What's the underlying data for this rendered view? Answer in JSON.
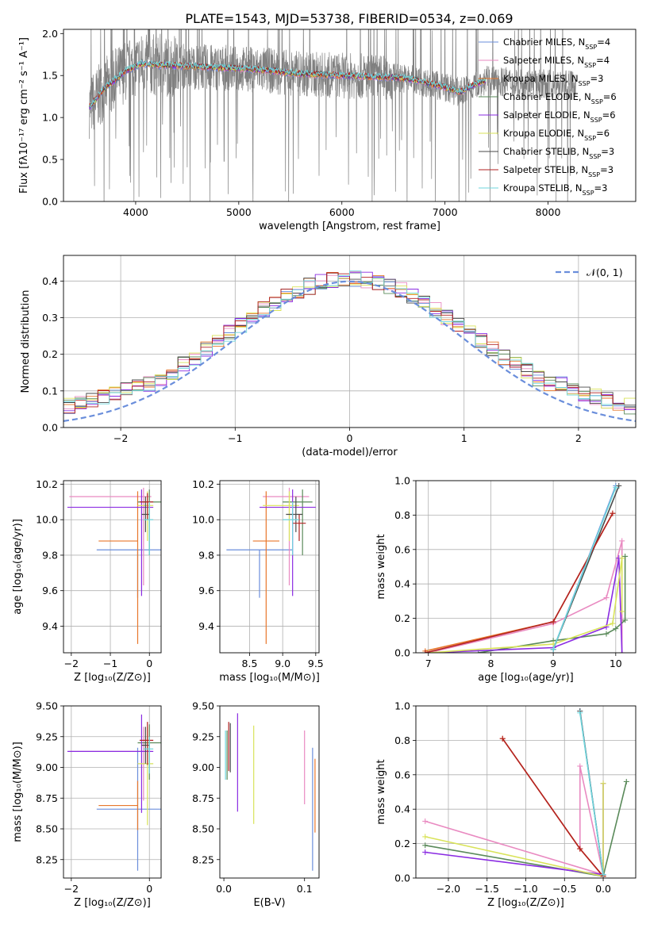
{
  "title": "PLATE=1543, MJD=53738, FIBERID=0534, z=0.069",
  "series_legend": [
    {
      "label": "Chabrier MILES, N",
      "sub": "SSP",
      "eq": "=4",
      "color": "#6a8edb"
    },
    {
      "label": "Salpeter MILES, N",
      "sub": "SSP",
      "eq": "=4",
      "color": "#e98ac1"
    },
    {
      "label": "Kroupa MILES, N",
      "sub": "SSP",
      "eq": "=3",
      "color": "#e8772b"
    },
    {
      "label": "Chabrier ELODIE, N",
      "sub": "SSP",
      "eq": "=6",
      "color": "#5a8a5a"
    },
    {
      "label": "Salpeter ELODIE, N",
      "sub": "SSP",
      "eq": "=6",
      "color": "#8a2be2"
    },
    {
      "label": "Kroupa ELODIE, N",
      "sub": "SSP",
      "eq": "=6",
      "color": "#d9e35a"
    },
    {
      "label": "Chabrier STELIB, N",
      "sub": "SSP",
      "eq": "=3",
      "color": "#4a4a4a"
    },
    {
      "label": "Salpeter STELIB, N",
      "sub": "SSP",
      "eq": "=3",
      "color": "#b22222"
    },
    {
      "label": "Kroupa STELIB, N",
      "sub": "SSP",
      "eq": "=3",
      "color": "#6fd6dc"
    }
  ],
  "chart_data": [
    {
      "id": "spectrum",
      "type": "line",
      "xlabel": "wavelength [Angstrom, rest frame]",
      "ylabel": "Flux [fλ10⁻¹⁷ erg cm⁻² s⁻¹ A⁻¹]",
      "xlim": [
        3300,
        8850
      ],
      "ylim": [
        0,
        2.05
      ],
      "xticks": [
        4000,
        5000,
        6000,
        7000,
        8000
      ],
      "yticks": [
        0,
        0.5,
        1.0,
        1.5,
        2.0
      ],
      "yticklabels": [
        "0.0",
        "0.5",
        "1.0",
        "1.5",
        "2.0"
      ],
      "data_range": [
        3550,
        8270
      ],
      "model_range": [
        3550,
        7400
      ],
      "continuum": [
        [
          3550,
          1.12
        ],
        [
          3700,
          1.35
        ],
        [
          3900,
          1.55
        ],
        [
          4050,
          1.64
        ],
        [
          4300,
          1.62
        ],
        [
          4700,
          1.6
        ],
        [
          5200,
          1.57
        ],
        [
          5600,
          1.52
        ],
        [
          6000,
          1.5
        ],
        [
          6400,
          1.48
        ],
        [
          6600,
          1.47
        ],
        [
          6800,
          1.42
        ],
        [
          7000,
          1.36
        ],
        [
          7150,
          1.3
        ],
        [
          7300,
          1.4
        ],
        [
          7400,
          1.44
        ],
        [
          7700,
          1.42
        ],
        [
          8000,
          1.4
        ],
        [
          8270,
          1.38
        ]
      ]
    },
    {
      "id": "residuals",
      "type": "step",
      "xlabel": "(data-model)/error",
      "ylabel": "Normed distribution",
      "xlim": [
        -2.5,
        2.5
      ],
      "ylim": [
        0,
        0.47
      ],
      "xticks": [
        -2,
        -1,
        0,
        1,
        2
      ],
      "yticks": [
        0,
        0.1,
        0.2,
        0.3,
        0.4
      ],
      "xticklabels": [
        "−2",
        "−1",
        "0",
        "1",
        "2"
      ],
      "yticklabels": [
        "0.0",
        "0.1",
        "0.2",
        "0.3",
        "0.4"
      ],
      "bin_width": 0.1,
      "bin_start": -2.5,
      "reference": {
        "name": "𝒩(0, 1)",
        "color": "#6a8edb"
      }
    },
    {
      "id": "age_vs_Z",
      "type": "errorbar",
      "xlabel": "Z [log₁₀(Z/Z⊙)]",
      "ylabel": "age  [log₁₀(age/yr)]",
      "xlim": [
        -2.2,
        0.3
      ],
      "ylim": [
        9.25,
        10.22
      ],
      "xticks": [
        -2,
        -1,
        0
      ],
      "xticklabels": [
        "−2",
        "−1",
        "0"
      ],
      "yticks": [
        9.4,
        9.6,
        9.8,
        10.0,
        10.2
      ],
      "yticklabels": [
        "9.4",
        "9.6",
        "9.8",
        "10.0",
        "10.2"
      ],
      "points": [
        {
          "x": -0.3,
          "y": 9.83,
          "xerr": [
            1.05,
            1.0
          ],
          "yerr": [
            0.27,
            0.0
          ],
          "s": 0
        },
        {
          "x": -0.15,
          "y": 10.13,
          "xerr": [
            1.9,
            0.2
          ],
          "yerr": [
            0.5,
            0.05
          ],
          "s": 1
        },
        {
          "x": -0.3,
          "y": 9.88,
          "xerr": [
            1.0,
            0.0
          ],
          "yerr": [
            0.58,
            0.28
          ],
          "s": 2
        },
        {
          "x": 0.0,
          "y": 10.1,
          "xerr": [
            0.3,
            0.3
          ],
          "yerr": [
            0.3,
            0.07
          ],
          "s": 3
        },
        {
          "x": -0.2,
          "y": 10.07,
          "xerr": [
            1.9,
            0.3
          ],
          "yerr": [
            0.5,
            0.1
          ],
          "s": 4
        },
        {
          "x": -0.05,
          "y": 10.08,
          "xerr": [
            0.25,
            0.15
          ],
          "yerr": [
            0.2,
            0.08
          ],
          "s": 5
        },
        {
          "x": -0.1,
          "y": 10.03,
          "xerr": [
            0.1,
            0.1
          ],
          "yerr": [
            0.1,
            0.1
          ],
          "s": 6
        },
        {
          "x": -0.05,
          "y": 10.1,
          "xerr": [
            0.2,
            0.15
          ],
          "yerr": [
            0.1,
            0.05
          ],
          "s": 7
        },
        {
          "x": 0.0,
          "y": 10.0,
          "xerr": [
            0.15,
            0.1
          ],
          "yerr": [
            0.2,
            0.1
          ],
          "s": 8
        }
      ]
    },
    {
      "id": "age_vs_mass",
      "type": "errorbar",
      "xlabel": "mass [log₁₀(M/M⊙)]",
      "ylabel": "",
      "xlim": [
        8.05,
        9.55
      ],
      "ylim": [
        9.25,
        10.22
      ],
      "xticks": [
        8.5,
        9.0,
        9.5
      ],
      "xticklabels": [
        "8.5",
        "9.0",
        "9.5"
      ],
      "yticks": [
        9.4,
        9.6,
        9.8,
        10.0,
        10.2
      ],
      "yticklabels": [
        "9.4",
        "9.6",
        "9.8",
        "10.0",
        "10.2"
      ],
      "points": [
        {
          "x": 8.65,
          "y": 9.83,
          "xerr": [
            0.5,
            0.5
          ],
          "yerr": [
            0.27,
            0.0
          ],
          "s": 0
        },
        {
          "x": 9.1,
          "y": 10.13,
          "xerr": [
            0.4,
            0.3
          ],
          "yerr": [
            0.5,
            0.05
          ],
          "s": 1
        },
        {
          "x": 8.75,
          "y": 9.88,
          "xerr": [
            0.2,
            0.2
          ],
          "yerr": [
            0.58,
            0.28
          ],
          "s": 2
        },
        {
          "x": 9.3,
          "y": 10.1,
          "xerr": [
            0.3,
            0.15
          ],
          "yerr": [
            0.3,
            0.07
          ],
          "s": 3
        },
        {
          "x": 9.15,
          "y": 10.07,
          "xerr": [
            0.5,
            0.35
          ],
          "yerr": [
            0.5,
            0.1
          ],
          "s": 4
        },
        {
          "x": 9.1,
          "y": 10.08,
          "xerr": [
            0.4,
            0.15
          ],
          "yerr": [
            0.2,
            0.08
          ],
          "s": 5
        },
        {
          "x": 9.2,
          "y": 10.03,
          "xerr": [
            0.15,
            0.1
          ],
          "yerr": [
            0.1,
            0.1
          ],
          "s": 6
        },
        {
          "x": 9.25,
          "y": 9.98,
          "xerr": [
            0.1,
            0.1
          ],
          "yerr": [
            0.1,
            0.05
          ],
          "s": 7
        },
        {
          "x": 9.15,
          "y": 10.0,
          "xerr": [
            0.15,
            0.1
          ],
          "yerr": [
            0.2,
            0.1
          ],
          "s": 8
        }
      ]
    },
    {
      "id": "mass_vs_Z",
      "type": "errorbar",
      "xlabel": "Z [log₁₀(Z/Z⊙)]",
      "ylabel": "mass [log₁₀(M/M⊙)]",
      "xlim": [
        -2.2,
        0.3
      ],
      "ylim": [
        8.1,
        9.5
      ],
      "xticks": [
        -2,
        0
      ],
      "xticklabels": [
        "−2",
        "0"
      ],
      "yticks": [
        8.25,
        8.5,
        8.75,
        9.0,
        9.25,
        9.5
      ],
      "yticklabels": [
        "8.25",
        "8.50",
        "8.75",
        "9.00",
        "9.25",
        "9.50"
      ],
      "points": [
        {
          "x": -0.3,
          "y": 8.66,
          "xerr": [
            1.05,
            1.0
          ],
          "yerr": [
            0.5,
            0.5
          ],
          "s": 0
        },
        {
          "x": -0.15,
          "y": 9.13,
          "xerr": [
            1.9,
            0.2
          ],
          "yerr": [
            0.4,
            0.2
          ],
          "s": 1
        },
        {
          "x": -0.3,
          "y": 8.69,
          "xerr": [
            1.0,
            0.0
          ],
          "yerr": [
            0.2,
            0.2
          ],
          "s": 2
        },
        {
          "x": 0.0,
          "y": 9.2,
          "xerr": [
            0.3,
            0.3
          ],
          "yerr": [
            0.3,
            0.15
          ],
          "s": 3
        },
        {
          "x": -0.2,
          "y": 9.13,
          "xerr": [
            1.9,
            0.3
          ],
          "yerr": [
            0.5,
            0.3
          ],
          "s": 4
        },
        {
          "x": -0.05,
          "y": 9.03,
          "xerr": [
            0.25,
            0.15
          ],
          "yerr": [
            0.5,
            0.3
          ],
          "s": 5
        },
        {
          "x": -0.1,
          "y": 9.18,
          "xerr": [
            0.1,
            0.1
          ],
          "yerr": [
            0.15,
            0.15
          ],
          "s": 6
        },
        {
          "x": -0.05,
          "y": 9.22,
          "xerr": [
            0.2,
            0.15
          ],
          "yerr": [
            0.2,
            0.15
          ],
          "s": 7
        },
        {
          "x": 0.0,
          "y": 9.15,
          "xerr": [
            0.15,
            0.1
          ],
          "yerr": [
            0.2,
            0.1
          ],
          "s": 8
        }
      ]
    },
    {
      "id": "mass_vs_ebv",
      "type": "errorbar",
      "xlabel": "E(B-V)",
      "ylabel": "",
      "xlim": [
        -0.005,
        0.118
      ],
      "ylim": [
        8.1,
        9.5
      ],
      "xticks": [
        0.0,
        0.1
      ],
      "xticklabels": [
        "0.0",
        "0.1"
      ],
      "yticks": [
        8.25,
        8.5,
        8.75,
        9.0,
        9.25,
        9.5
      ],
      "yticklabels": [
        "8.25",
        "8.50",
        "8.75",
        "9.00",
        "9.25",
        "9.50"
      ],
      "points": [
        {
          "x": 0.11,
          "y": 8.66,
          "xerr": [
            0,
            0
          ],
          "yerr": [
            0.5,
            0.5
          ],
          "s": 0
        },
        {
          "x": 0.1,
          "y": 9.0,
          "xerr": [
            0,
            0
          ],
          "yerr": [
            0.3,
            0.3
          ],
          "s": 1
        },
        {
          "x": 0.113,
          "y": 8.77,
          "xerr": [
            0,
            0
          ],
          "yerr": [
            0.3,
            0.3
          ],
          "s": 2
        },
        {
          "x": 0.004,
          "y": 9.1,
          "xerr": [
            0,
            0
          ],
          "yerr": [
            0.2,
            0.2
          ],
          "s": 3
        },
        {
          "x": 0.017,
          "y": 9.04,
          "xerr": [
            0,
            0
          ],
          "yerr": [
            0.4,
            0.4
          ],
          "s": 4
        },
        {
          "x": 0.037,
          "y": 8.94,
          "xerr": [
            0,
            0
          ],
          "yerr": [
            0.4,
            0.4
          ],
          "s": 5
        },
        {
          "x": 0.008,
          "y": 9.16,
          "xerr": [
            0,
            0
          ],
          "yerr": [
            0.2,
            0.2
          ],
          "s": 6
        },
        {
          "x": 0.006,
          "y": 9.17,
          "xerr": [
            0,
            0
          ],
          "yerr": [
            0.2,
            0.2
          ],
          "s": 7
        },
        {
          "x": 0.002,
          "y": 9.1,
          "xerr": [
            0,
            0
          ],
          "yerr": [
            0.2,
            0.2
          ],
          "s": 8
        }
      ]
    },
    {
      "id": "weight_vs_age",
      "type": "line",
      "xlabel": "age  [log₁₀(age/yr)]",
      "ylabel": "mass weight",
      "xlim": [
        6.8,
        10.32
      ],
      "ylim": [
        0,
        1.0
      ],
      "xticks": [
        7,
        8,
        9,
        10
      ],
      "xticklabels": [
        "7",
        "8",
        "9",
        "10"
      ],
      "yticks": [
        0,
        0.2,
        0.4,
        0.6,
        0.8,
        1.0
      ],
      "yticklabels": [
        "0.0",
        "0.2",
        "0.4",
        "0.6",
        "0.8",
        "1.0"
      ],
      "series": [
        {
          "s": 0,
          "x": [
            9.0,
            10.0
          ],
          "y": [
            0.02,
            0.97
          ]
        },
        {
          "s": 1,
          "x": [
            7.0,
            9.0,
            9.85,
            10.1,
            10.1
          ],
          "y": [
            0.0,
            0.17,
            0.32,
            0.65,
            0.0
          ]
        },
        {
          "s": 2,
          "x": [
            6.95,
            9.0,
            9.95
          ],
          "y": [
            0.01,
            0.18,
            0.81
          ]
        },
        {
          "s": 3,
          "x": [
            7.8,
            9.0,
            9.85,
            10.0,
            10.15,
            10.15
          ],
          "y": [
            0.0,
            0.07,
            0.11,
            0.14,
            0.19,
            0.56
          ]
        },
        {
          "s": 4,
          "x": [
            7.0,
            9.0,
            9.85,
            10.05,
            10.1
          ],
          "y": [
            0.0,
            0.03,
            0.15,
            0.55,
            0.0
          ]
        },
        {
          "s": 5,
          "x": [
            7.0,
            9.0,
            9.95,
            10.1,
            10.1
          ],
          "y": [
            0.0,
            0.05,
            0.17,
            0.55,
            0.24
          ]
        },
        {
          "s": 6,
          "x": [
            9.0,
            10.05
          ],
          "y": [
            0.02,
            0.97
          ]
        },
        {
          "s": 7,
          "x": [
            6.95,
            9.0,
            9.95
          ],
          "y": [
            0.0,
            0.18,
            0.81
          ]
        },
        {
          "s": 8,
          "x": [
            9.0,
            10.0
          ],
          "y": [
            0.02,
            0.96
          ]
        }
      ]
    },
    {
      "id": "weight_vs_Z",
      "type": "line",
      "xlabel": "Z [log₁₀(Z/Z⊙)]",
      "ylabel": "mass weight",
      "xlim": [
        -2.42,
        0.42
      ],
      "ylim": [
        0,
        1.0
      ],
      "xticks": [
        -2.0,
        -1.5,
        -1.0,
        -0.5,
        0.0
      ],
      "xticklabels": [
        "−2.0",
        "−1.5",
        "−1.0",
        "−0.5",
        "0.0"
      ],
      "yticks": [
        0,
        0.2,
        0.4,
        0.6,
        0.8,
        1.0
      ],
      "yticklabels": [
        "0.0",
        "0.2",
        "0.4",
        "0.6",
        "0.8",
        "1.0"
      ],
      "series": [
        {
          "s": 0,
          "x": [
            -0.3,
            0.0
          ],
          "y": [
            0.97,
            0.02
          ]
        },
        {
          "s": 1,
          "x": [
            -2.3,
            0.0,
            -0.3,
            -0.3
          ],
          "y": [
            0.33,
            0.02,
            0.65,
            0.17
          ]
        },
        {
          "s": 2,
          "x": [
            -1.3,
            -0.3,
            0.0
          ],
          "y": [
            0.81,
            0.17,
            0.01
          ]
        },
        {
          "s": 3,
          "x": [
            -2.3,
            0.0,
            0.3
          ],
          "y": [
            0.19,
            0.01,
            0.56
          ]
        },
        {
          "s": 4,
          "x": [
            -2.3,
            0.0,
            0.0
          ],
          "y": [
            0.15,
            0.02,
            0.55
          ]
        },
        {
          "s": 5,
          "x": [
            -2.3,
            0.0,
            0.0
          ],
          "y": [
            0.24,
            0.01,
            0.55
          ]
        },
        {
          "s": 6,
          "x": [
            -0.3,
            0.0
          ],
          "y": [
            0.97,
            0.02
          ]
        },
        {
          "s": 7,
          "x": [
            -1.3,
            -0.3,
            0.0
          ],
          "y": [
            0.81,
            0.17,
            0.01
          ]
        },
        {
          "s": 8,
          "x": [
            -0.3,
            0.0
          ],
          "y": [
            0.96,
            0.02
          ]
        }
      ]
    }
  ]
}
